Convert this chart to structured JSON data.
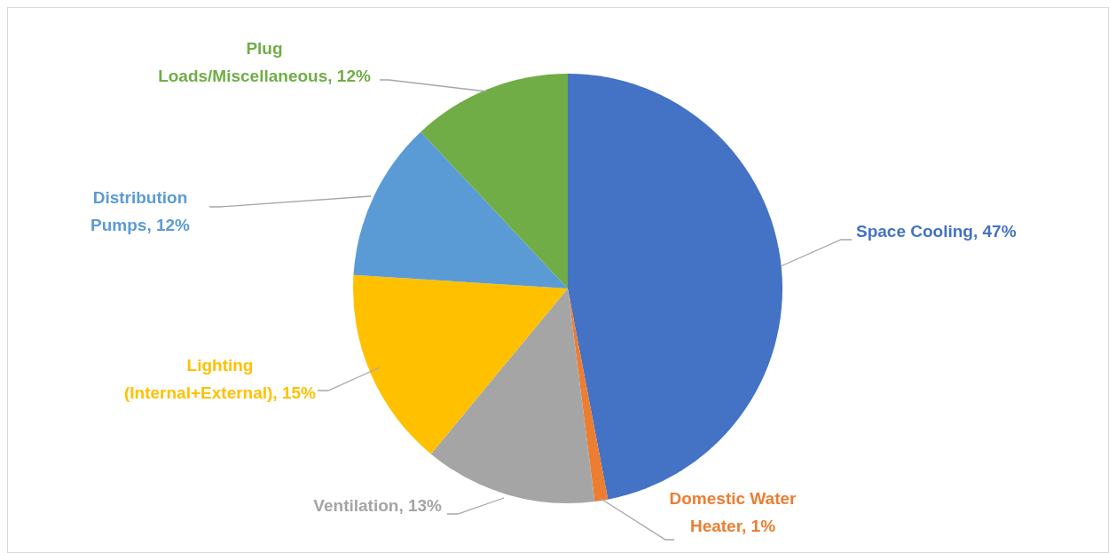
{
  "chart_data": {
    "type": "pie",
    "categories": [
      "Space Cooling",
      "Domestic Water Heater",
      "Ventilation",
      "Lighting (Internal+External)",
      "Distribution Pumps",
      "Plug Loads/Miscellaneous"
    ],
    "values": [
      47,
      1,
      13,
      15,
      12,
      12
    ],
    "value_labels": [
      "47%",
      "1%",
      "13%",
      "15%",
      "12%",
      "12%"
    ],
    "colors": [
      "#4472c4",
      "#ed7d31",
      "#a5a5a5",
      "#ffc000",
      "#5b9bd5",
      "#70ad47"
    ],
    "legend": false
  }
}
